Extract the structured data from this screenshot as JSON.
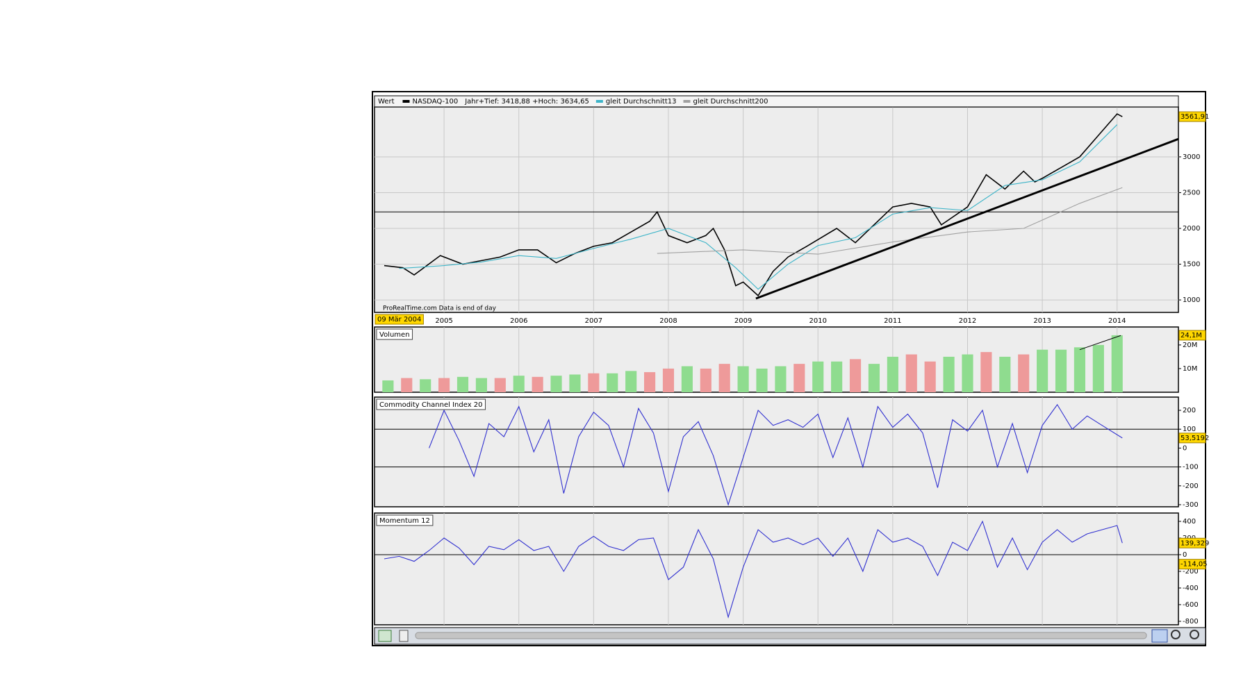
{
  "chart_data": [
    {
      "type": "line",
      "legend_label": "Wert",
      "range_text": "Jahr+Tief: 3418,88 +Hoch: 3634,65",
      "source": "ProRealTime.com Data is end of day",
      "cursor_label": "09 Mär 2004",
      "xlim": [
        2004.07,
        2014.82
      ],
      "xticks": [
        2005,
        2006,
        2007,
        2008,
        2009,
        2010,
        2011,
        2012,
        2013,
        2014
      ],
      "ylim": [
        826,
        3698
      ],
      "yticks": [
        1000,
        1500,
        2000,
        2500,
        3000
      ],
      "grid": true,
      "hlines": [
        2230
      ],
      "trendline": {
        "x": [
          2009.17,
          2014.82
        ],
        "y": [
          1020,
          3250
        ]
      },
      "markers": [
        {
          "value": 3561.91,
          "label": "3561,91"
        }
      ],
      "series": [
        {
          "name": "NASDAQ-100",
          "color": "#000000",
          "x": [
            2004.2,
            2004.45,
            2004.6,
            2004.95,
            2005.25,
            2005.5,
            2005.75,
            2006.0,
            2006.25,
            2006.5,
            2006.75,
            2007.0,
            2007.25,
            2007.5,
            2007.75,
            2007.85,
            2008.0,
            2008.25,
            2008.5,
            2008.6,
            2008.75,
            2008.9,
            2009.0,
            2009.2,
            2009.4,
            2009.6,
            2009.85,
            2010.25,
            2010.5,
            2010.75,
            2011.0,
            2011.25,
            2011.5,
            2011.65,
            2012.0,
            2012.25,
            2012.5,
            2012.75,
            2012.9,
            2013.0,
            2013.25,
            2013.5,
            2013.75,
            2014.0,
            2014.07
          ],
          "values": [
            1480,
            1450,
            1350,
            1620,
            1500,
            1550,
            1600,
            1700,
            1700,
            1520,
            1650,
            1750,
            1800,
            1950,
            2100,
            2230,
            1900,
            1800,
            1900,
            2000,
            1700,
            1200,
            1250,
            1060,
            1400,
            1600,
            1750,
            2000,
            1800,
            2050,
            2300,
            2350,
            2300,
            2050,
            2300,
            2750,
            2550,
            2800,
            2650,
            2700,
            2850,
            3000,
            3300,
            3600,
            3561.91
          ]
        },
        {
          "name": "gleit Durchschnitt13",
          "color": "#3cb4c8",
          "x": [
            2004.4,
            2005.0,
            2005.5,
            2006.0,
            2006.5,
            2007.0,
            2007.5,
            2008.0,
            2008.5,
            2008.9,
            2009.2,
            2009.6,
            2010.0,
            2010.5,
            2011.0,
            2011.5,
            2012.0,
            2012.5,
            2013.0,
            2013.5,
            2014.0
          ],
          "values": [
            1440,
            1480,
            1530,
            1620,
            1580,
            1720,
            1850,
            2000,
            1800,
            1450,
            1150,
            1500,
            1760,
            1870,
            2200,
            2290,
            2250,
            2600,
            2680,
            2930,
            3450
          ]
        },
        {
          "name": "gleit Durchschnitt200",
          "color": "#a0a0a0",
          "x": [
            2007.85,
            2009.0,
            2010.0,
            2011.0,
            2012.0,
            2012.75,
            2013.5,
            2014.07
          ],
          "values": [
            1650,
            1700,
            1640,
            1810,
            1950,
            2000,
            2350,
            2570
          ]
        }
      ]
    },
    {
      "type": "bar",
      "title": "Volumen",
      "ylim": [
        0,
        27600000
      ],
      "yticks": [
        {
          "value": 10000000,
          "label": "10M"
        },
        {
          "value": 20000000,
          "label": "20M"
        }
      ],
      "trendline": {
        "x": [
          2013.5,
          2014.05
        ],
        "y": [
          18000000,
          24000000
        ]
      },
      "markers": [
        {
          "value": 24100000,
          "label": "24,1M"
        }
      ],
      "x": [
        2004.25,
        2004.5,
        2004.75,
        2005.0,
        2005.25,
        2005.5,
        2005.75,
        2006.0,
        2006.25,
        2006.5,
        2006.75,
        2007.0,
        2007.25,
        2007.5,
        2007.75,
        2008.0,
        2008.25,
        2008.5,
        2008.75,
        2009.0,
        2009.25,
        2009.5,
        2009.75,
        2010.0,
        2010.25,
        2010.5,
        2010.75,
        2011.0,
        2011.25,
        2011.5,
        2011.75,
        2012.0,
        2012.25,
        2012.5,
        2012.75,
        2013.0,
        2013.25,
        2013.5,
        2013.75,
        2014.0
      ],
      "values": [
        5000000,
        6000000,
        5500000,
        6000000,
        6500000,
        6000000,
        6000000,
        7000000,
        6500000,
        7000000,
        7500000,
        8000000,
        8000000,
        9000000,
        8500000,
        10000000,
        11000000,
        10000000,
        12000000,
        11000000,
        10000000,
        11000000,
        12000000,
        13000000,
        13000000,
        14000000,
        12000000,
        15000000,
        16000000,
        13000000,
        15000000,
        16000000,
        17000000,
        15000000,
        16000000,
        18000000,
        18000000,
        19000000,
        20000000,
        24100000
      ],
      "colors": [
        "#8fdc8f",
        "#ee9a9a",
        "#8fdc8f",
        "#ee9a9a",
        "#8fdc8f",
        "#8fdc8f",
        "#ee9a9a",
        "#8fdc8f",
        "#ee9a9a",
        "#8fdc8f",
        "#8fdc8f",
        "#ee9a9a",
        "#8fdc8f",
        "#8fdc8f",
        "#ee9a9a",
        "#ee9a9a",
        "#8fdc8f",
        "#ee9a9a",
        "#ee9a9a",
        "#8fdc8f",
        "#8fdc8f",
        "#8fdc8f",
        "#ee9a9a",
        "#8fdc8f",
        "#8fdc8f",
        "#ee9a9a",
        "#8fdc8f",
        "#8fdc8f",
        "#ee9a9a",
        "#ee9a9a",
        "#8fdc8f",
        "#8fdc8f",
        "#ee9a9a",
        "#8fdc8f",
        "#ee9a9a",
        "#8fdc8f",
        "#8fdc8f",
        "#8fdc8f",
        "#8fdc8f",
        "#8fdc8f"
      ]
    },
    {
      "type": "line",
      "title": "Commodity Channel Index 20",
      "ylim": [
        -311,
        270
      ],
      "yticks": [
        200,
        100,
        0,
        -100,
        -200,
        -300
      ],
      "hlines": [
        100,
        -100
      ],
      "markers": [
        {
          "value": 53.5192,
          "label": "53,5192"
        }
      ],
      "series": [
        {
          "color": "#3030d0",
          "x": [
            2004.8,
            2005.0,
            2005.2,
            2005.4,
            2005.6,
            2005.8,
            2006.0,
            2006.2,
            2006.4,
            2006.6,
            2006.8,
            2007.0,
            2007.2,
            2007.4,
            2007.6,
            2007.8,
            2008.0,
            2008.2,
            2008.4,
            2008.6,
            2008.8,
            2009.0,
            2009.2,
            2009.4,
            2009.6,
            2009.8,
            2010.0,
            2010.2,
            2010.4,
            2010.6,
            2010.8,
            2011.0,
            2011.2,
            2011.4,
            2011.6,
            2011.8,
            2012.0,
            2012.2,
            2012.4,
            2012.6,
            2012.8,
            2013.0,
            2013.2,
            2013.4,
            2013.6,
            2013.8,
            2014.07
          ],
          "values": [
            0,
            200,
            40,
            -150,
            130,
            60,
            220,
            -20,
            150,
            -240,
            60,
            190,
            120,
            -100,
            210,
            80,
            -230,
            60,
            140,
            -40,
            -300,
            -50,
            200,
            120,
            150,
            110,
            180,
            -50,
            160,
            -100,
            220,
            110,
            180,
            80,
            -210,
            150,
            90,
            200,
            -100,
            130,
            -130,
            120,
            230,
            100,
            170,
            120,
            53.5192
          ]
        }
      ]
    },
    {
      "type": "line",
      "title": "Momentum 12",
      "ylim": [
        -842,
        500
      ],
      "yticks": [
        400,
        200,
        0,
        -200,
        -400,
        -600,
        -800
      ],
      "hlines": [
        0
      ],
      "markers": [
        {
          "value": 139.329,
          "label": "139,329"
        },
        {
          "value": -114.05,
          "label": "-114,05"
        }
      ],
      "series": [
        {
          "color": "#3030d0",
          "x": [
            2004.2,
            2004.4,
            2004.6,
            2004.8,
            2005.0,
            2005.2,
            2005.4,
            2005.6,
            2005.8,
            2006.0,
            2006.2,
            2006.4,
            2006.6,
            2006.8,
            2007.0,
            2007.2,
            2007.4,
            2007.6,
            2007.8,
            2008.0,
            2008.2,
            2008.4,
            2008.6,
            2008.8,
            2009.0,
            2009.2,
            2009.4,
            2009.6,
            2009.8,
            2010.0,
            2010.2,
            2010.4,
            2010.6,
            2010.8,
            2011.0,
            2011.2,
            2011.4,
            2011.6,
            2011.8,
            2012.0,
            2012.2,
            2012.4,
            2012.6,
            2012.8,
            2013.0,
            2013.2,
            2013.4,
            2013.6,
            2013.8,
            2014.0,
            2014.07
          ],
          "values": [
            -50,
            -20,
            -80,
            50,
            200,
            80,
            -120,
            100,
            60,
            180,
            50,
            100,
            -200,
            100,
            220,
            100,
            50,
            180,
            200,
            -300,
            -150,
            300,
            -50,
            -750,
            -150,
            300,
            150,
            200,
            120,
            200,
            -20,
            200,
            -200,
            300,
            150,
            200,
            100,
            -250,
            150,
            50,
            400,
            -150,
            200,
            -180,
            150,
            300,
            150,
            250,
            300,
            350,
            139.329
          ]
        }
      ]
    }
  ]
}
